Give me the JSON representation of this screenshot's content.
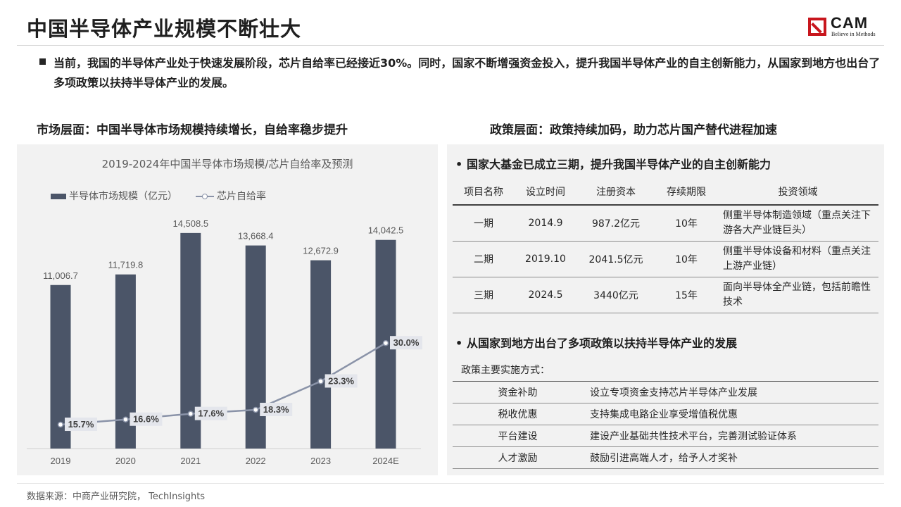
{
  "header": {
    "title": "中国半导体产业规模不断壮大",
    "logo_text": "CAM",
    "logo_tagline": "Believe in Methods"
  },
  "intro": "当前，我国的半导体产业处于快速发展阶段，芯片自给率已经接近30%。同时，国家不断增强资金投入，提升我国半导体产业的自主创新能力，从国家到地方也出台了多项政策以扶持半导体产业的发展。",
  "left": {
    "subtitle": "市场层面：中国半导体市场规模持续增长，自给率稳步提升"
  },
  "right": {
    "subtitle": "政策层面：政策持续加码，助力芯片国产替代进程加速",
    "bullet1": "国家大基金已成立三期，提升我国半导体产业的自主创新能力",
    "fund_headers": [
      "项目名称",
      "设立时间",
      "注册资本",
      "存续期限",
      "投资领域"
    ],
    "fund_rows": [
      [
        "一期",
        "2014.9",
        "987.2亿元",
        "10年",
        "侧重半导体制造领域（重点关注下游各大产业链巨头）"
      ],
      [
        "二期",
        "2019.10",
        "2041.5亿元",
        "10年",
        "侧重半导体设备和材料（重点关注上游产业链）"
      ],
      [
        "三期",
        "2024.5",
        "3440亿元",
        "15年",
        "面向半导体全产业链，包括前瞻性技术"
      ]
    ],
    "bullet2": "从国家到地方出台了多项政策以扶持半导体产业的发展",
    "policy_label": "政策主要实施方式：",
    "policy_rows": [
      [
        "资金补助",
        "设立专项资金支持芯片半导体产业发展"
      ],
      [
        "税收优惠",
        "支持集成电路企业享受增值税优惠"
      ],
      [
        "平台建设",
        "建设产业基础共性技术平台，完善测试验证体系"
      ],
      [
        "人才激励",
        "鼓励引进高端人才，给予人才奖补"
      ]
    ]
  },
  "source": "数据来源：中商产业研究院， TechInsights",
  "colors": {
    "bar": "#4b5568",
    "line": "#8a93a8",
    "panel": "#f2f2f2",
    "logo_red": "#c8161d"
  },
  "chart_data": {
    "type": "bar",
    "title": "2019-2024年中国半导体市场规模/芯片自给率及预测",
    "categories": [
      "2019",
      "2020",
      "2021",
      "2022",
      "2023",
      "2024E"
    ],
    "series": [
      {
        "name": "半导体市场规模（亿元）",
        "type": "bar",
        "values": [
          11006.7,
          11719.8,
          14508.5,
          13668.4,
          12672.9,
          14042.5
        ],
        "labels": [
          "11,006.7",
          "11,719.8",
          "14,508.5",
          "13,668.4",
          "12,672.9",
          "14,042.5"
        ]
      },
      {
        "name": "芯片自给率",
        "type": "line",
        "values": [
          15.7,
          16.6,
          17.6,
          18.3,
          23.3,
          30.0
        ],
        "labels": [
          "15.7%",
          "16.6%",
          "17.6%",
          "18.3%",
          "23.3%",
          "30.0%"
        ]
      }
    ],
    "legend_position": "top-left",
    "grid": false
  }
}
